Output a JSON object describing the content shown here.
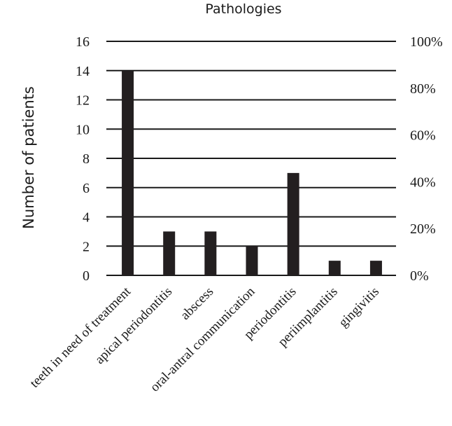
{
  "chart_data": {
    "type": "bar",
    "title": "Pathologies",
    "xlabel": "",
    "ylabel": "Number of patients",
    "categories": [
      "teeth in need of treatment",
      "apical periodontitis",
      "abscess",
      "oral-antral communication",
      "periodontitis",
      "periimplantitis",
      "gingivitis"
    ],
    "values": [
      14,
      3,
      3,
      2,
      7,
      1,
      1
    ],
    "ylim": [
      0,
      16
    ],
    "yticks": [
      0,
      2,
      4,
      6,
      8,
      10,
      12,
      14,
      16
    ],
    "y2ticks": [
      "0%",
      "20%",
      "40%",
      "60%",
      "80%",
      "100%"
    ],
    "grid": true,
    "bar_color": "#231f20"
  }
}
